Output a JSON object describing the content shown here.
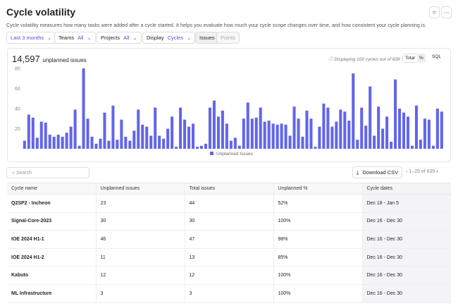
{
  "header": {
    "title": "Cycle volatility",
    "description": "Cycle volatility measures how many tasks were added after a cycle started. It helps you evaluate how much your cycle scope changes over time, and how consistent your cycle planning is."
  },
  "filters": {
    "period": "Last 3 months",
    "teams_label": "Teams",
    "teams_value": "All",
    "projects_label": "Projects",
    "projects_value": "All",
    "display_label": "Display",
    "display_value": "Cycles",
    "tabs": [
      "Issues",
      "Points"
    ]
  },
  "summary": {
    "total": "14,597",
    "label": "unplanned issues",
    "note": "Displaying 100 cycles out of 639",
    "toggles": [
      "Total",
      "%"
    ],
    "sql": "SQL"
  },
  "chart": {
    "type": "bar",
    "color": "#6366e8",
    "ylim": [
      0,
      80
    ],
    "yticks": [
      20,
      40,
      60,
      80
    ],
    "legend": "Unplanned Issues",
    "values": [
      8,
      34,
      31,
      11,
      27,
      26,
      14,
      12,
      14,
      12,
      16,
      22,
      39,
      3,
      80,
      30,
      12,
      5,
      10,
      36,
      8,
      43,
      9,
      29,
      12,
      8,
      18,
      39,
      24,
      22,
      13,
      41,
      13,
      10,
      20,
      32,
      2,
      41,
      29,
      22,
      25,
      2,
      3,
      5,
      41,
      48,
      32,
      38,
      25,
      8,
      11,
      3,
      30,
      46,
      30,
      31,
      41,
      27,
      28,
      25,
      24,
      25,
      24,
      13,
      42,
      30,
      12,
      38,
      30,
      2,
      22,
      45,
      41,
      22,
      27,
      39,
      37,
      28,
      75,
      9,
      41,
      23,
      62,
      13,
      42,
      20,
      32,
      7,
      69,
      40,
      36,
      32,
      3,
      43,
      9,
      30,
      29,
      3,
      40,
      37
    ]
  },
  "toolbar": {
    "search": "Search",
    "download": "Download CSV",
    "pagination": "1–25 of 639"
  },
  "table": {
    "columns": [
      "Cycle name",
      "Unplanned issues",
      "Total issues",
      "Unplanned %",
      "Cycle dates"
    ],
    "rows": [
      [
        "Q2SP2 - Incheon",
        "23",
        "44",
        "52%",
        "Dec 18 - Jan 5"
      ],
      [
        "Signal-Core-2023",
        "30",
        "30",
        "100%",
        "Dec 16 - Dec 30"
      ],
      [
        "IOE 2024 H1-1",
        "46",
        "47",
        "98%",
        "Dec 16 - Dec 30"
      ],
      [
        "IOE 2024 H1-2",
        "11",
        "13",
        "85%",
        "Dec 16 - Dec 30"
      ],
      [
        "Kabuto",
        "12",
        "12",
        "100%",
        "Dec 16 - Dec 30"
      ],
      [
        "ML Infrastructure",
        "3",
        "3",
        "100%",
        "Dec 16 - Dec 30"
      ]
    ]
  }
}
